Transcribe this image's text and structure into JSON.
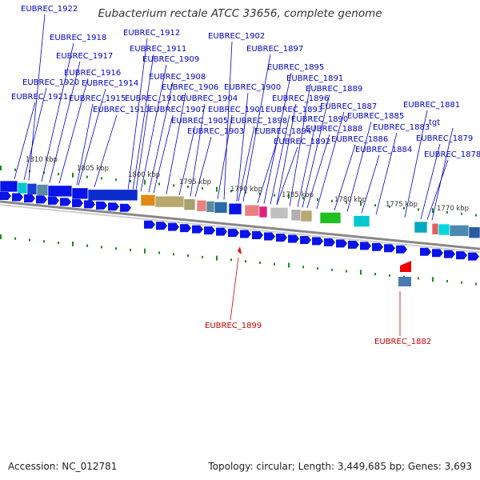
{
  "map": {
    "title": "Eubacterium rectale ATCC 33656, complete genome"
  },
  "footer": {
    "accession": "Accession: NC_012781",
    "summary": "Topology: circular; Length: 3,449,685 bp; Genes: 3,693"
  },
  "forward_labels": [
    "EUBREC_1922",
    "EUBREC_1918",
    "EUBREC_1917",
    "EUBREC_1916",
    "EUBREC_1914",
    "EUBREC_1920",
    "EUBREC_1921",
    "EUBREC_1915",
    "EUBREC_1913",
    "EUBREC_1912",
    "EUBREC_1911",
    "EUBREC_1909",
    "EUBREC_1908",
    "EUBREC_1906",
    "EUBREC_1910",
    "EUBREC_1907",
    "EUBREC_1905",
    "EUBREC_1904",
    "EUBREC_1903",
    "EUBREC_1902",
    "EUBREC_1897",
    "EUBREC_1895",
    "EUBREC_1900",
    "EUBREC_1901",
    "EUBREC_1898",
    "EUBREC_1896",
    "EUBREC_1894",
    "EUBREC_1893",
    "EUBREC_1892",
    "EUBREC_1891",
    "EUBREC_1889",
    "EUBREC_1890",
    "EUBREC_1888",
    "EUBREC_1887",
    "EUBREC_1886",
    "EUBREC_1885",
    "EUBREC_1884",
    "EUBREC_1883",
    "EUBREC_1881",
    "tgt",
    "EUBREC_1879",
    "EUBREC_1878"
  ],
  "reverse_labels": [
    "EUBREC_1899",
    "EUBREC_1882"
  ],
  "scale_labels": [
    "1810 kbp",
    "1805 kbp",
    "1800 kbp",
    "1795 kbp",
    "1790 kbp",
    "1785 kbp",
    "1780 kbp",
    "1775 kbp",
    "1770 kbp"
  ],
  "colors": {
    "forward_gene": "#0a14e6",
    "reverse_gene": "#ee0000",
    "leader_forward": "#0000cc",
    "leader_reverse": "#cc0000",
    "tick": "#1a8a1a",
    "strand_line": "#888888"
  }
}
